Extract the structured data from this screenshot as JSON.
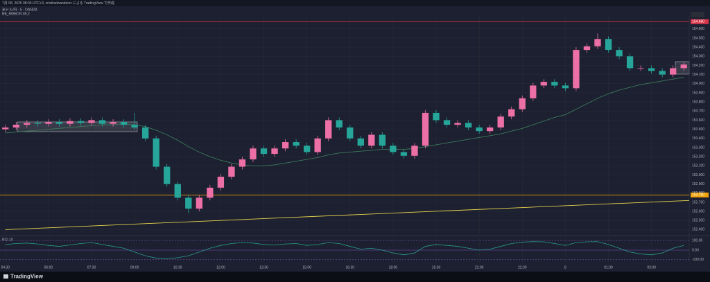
{
  "chart_data": {
    "type": "candlestick",
    "subtitle": "7月 08, 2025 08:03 UTC+9, cristinelwanderer による TradingView で作成",
    "title": "米ドル/円 · 5 · OANDA",
    "source": "TradingView",
    "up_color": "#ec6fa5",
    "down_color": "#26a69a",
    "grid": true,
    "categories": [
      "04:30",
      null,
      null,
      null,
      "06:00",
      null,
      null,
      null,
      "07:30",
      null,
      null,
      null,
      "09:00",
      null,
      null,
      null,
      "10:30",
      null,
      null,
      null,
      "12:00",
      null,
      null,
      null,
      "13:30",
      null,
      null,
      null,
      "15:00",
      null,
      null,
      null,
      "16:30",
      null,
      null,
      null,
      "18:00",
      null,
      null,
      null,
      "19:30",
      null,
      null,
      null,
      "21:00",
      null,
      null,
      null,
      "22:30",
      null,
      null,
      null,
      "8",
      null,
      null,
      null,
      "01:30",
      null,
      null,
      null,
      "03:00",
      null,
      null,
      null
    ],
    "open": [
      153.5,
      153.52,
      153.55,
      153.57,
      153.56,
      153.58,
      153.56,
      153.59,
      153.57,
      153.6,
      153.56,
      153.58,
      153.55,
      153.52,
      153.4,
      153.09,
      152.9,
      152.75,
      152.63,
      152.75,
      152.86,
      152.98,
      153.09,
      153.17,
      153.29,
      153.23,
      153.29,
      153.36,
      153.32,
      153.25,
      153.4,
      153.6,
      153.52,
      153.4,
      153.32,
      153.44,
      153.32,
      153.25,
      153.21,
      153.32,
      153.68,
      153.6,
      153.55,
      153.57,
      153.52,
      153.48,
      153.52,
      153.64,
      153.72,
      153.84,
      153.98,
      154.02,
      153.98,
      153.95,
      154.37,
      154.41,
      154.49,
      154.37,
      154.3,
      154.17,
      154.17,
      154.14,
      154.1,
      154.17
    ],
    "high": [
      153.55,
      153.58,
      153.6,
      153.6,
      153.61,
      153.61,
      153.62,
      153.62,
      153.63,
      153.63,
      153.61,
      153.61,
      153.68,
      153.55,
      153.43,
      153.12,
      152.93,
      152.78,
      152.78,
      152.89,
      153.01,
      153.12,
      153.2,
      153.32,
      153.32,
      153.32,
      153.39,
      153.39,
      153.35,
      153.43,
      153.63,
      153.63,
      153.55,
      153.43,
      153.47,
      153.47,
      153.35,
      153.28,
      153.35,
      153.71,
      153.71,
      153.63,
      153.6,
      153.6,
      153.55,
      153.55,
      153.67,
      153.75,
      153.87,
      154.01,
      154.05,
      154.05,
      154.01,
      154.4,
      154.44,
      154.55,
      154.52,
      154.4,
      154.33,
      154.2,
      154.2,
      154.17,
      154.2,
      154.24
    ],
    "low": [
      153.47,
      153.49,
      153.52,
      153.53,
      153.53,
      153.53,
      153.53,
      153.54,
      153.54,
      153.53,
      153.53,
      153.52,
      153.49,
      153.37,
      153.06,
      152.87,
      152.72,
      152.58,
      152.6,
      152.72,
      152.83,
      152.95,
      153.06,
      153.14,
      153.2,
      153.2,
      153.26,
      153.29,
      153.22,
      153.22,
      153.37,
      153.49,
      153.37,
      153.29,
      153.29,
      153.29,
      153.22,
      153.18,
      153.18,
      153.29,
      153.57,
      153.52,
      153.52,
      153.49,
      153.45,
      153.45,
      153.49,
      153.61,
      153.69,
      153.81,
      153.95,
      153.95,
      153.92,
      153.92,
      154.34,
      154.38,
      154.34,
      154.27,
      154.14,
      154.14,
      154.11,
      154.07,
      154.07,
      154.14
    ],
    "close": [
      153.52,
      153.55,
      153.57,
      153.56,
      153.58,
      153.56,
      153.59,
      153.57,
      153.6,
      153.56,
      153.58,
      153.55,
      153.52,
      153.4,
      153.09,
      152.9,
      152.75,
      152.63,
      152.75,
      152.86,
      152.98,
      153.09,
      153.17,
      153.29,
      153.23,
      153.29,
      153.36,
      153.32,
      153.25,
      153.4,
      153.6,
      153.52,
      153.4,
      153.32,
      153.44,
      153.32,
      153.25,
      153.21,
      153.32,
      153.68,
      153.6,
      153.55,
      153.57,
      153.52,
      153.48,
      153.52,
      153.64,
      153.72,
      153.84,
      153.98,
      154.02,
      153.98,
      153.95,
      154.37,
      154.41,
      154.49,
      154.37,
      154.3,
      154.17,
      154.17,
      154.14,
      154.1,
      154.17,
      154.21
    ],
    "series": [
      {
        "name": "BB_RIBBON 89,2",
        "color": "#3d7a5c",
        "values": [
          153.46,
          153.47,
          153.48,
          153.49,
          153.5,
          153.51,
          153.52,
          153.53,
          153.54,
          153.55,
          153.55,
          153.56,
          153.55,
          153.53,
          153.49,
          153.44,
          153.38,
          153.31,
          153.25,
          153.2,
          153.16,
          153.13,
          153.11,
          153.1,
          153.1,
          153.11,
          153.13,
          153.15,
          153.17,
          153.19,
          153.22,
          153.24,
          153.25,
          153.26,
          153.27,
          153.28,
          153.28,
          153.28,
          153.29,
          153.31,
          153.33,
          153.35,
          153.37,
          153.39,
          153.41,
          153.43,
          153.45,
          153.48,
          153.51,
          153.55,
          153.59,
          153.63,
          153.66,
          153.72,
          153.78,
          153.84,
          153.89,
          153.93,
          153.96,
          153.99,
          154.01,
          154.03,
          154.05,
          154.07
        ]
      }
    ],
    "levels": [
      {
        "value": 154.68,
        "label": "154.680",
        "color": "#d9364a"
      },
      {
        "value": 152.78,
        "label": "152.780",
        "color": "#f0a30a"
      }
    ],
    "trendline": {
      "values": [
        152.4,
        152.72
      ],
      "color": "#e8d44d"
    },
    "ylim": [
      152.35,
      154.72
    ],
    "yticks": [
      {
        "value": 152.4,
        "label": "152.400"
      },
      {
        "value": 152.5,
        "label": "152.500"
      },
      {
        "value": 152.6,
        "label": "152.600"
      },
      {
        "value": 152.7,
        "label": "152.700"
      },
      {
        "value": 152.8,
        "label": "152.800"
      },
      {
        "value": 152.9,
        "label": "152.900"
      },
      {
        "value": 153.0,
        "label": "153.000"
      },
      {
        "value": 153.1,
        "label": "153.100"
      },
      {
        "value": 153.2,
        "label": "153.200"
      },
      {
        "value": 153.3,
        "label": "153.300"
      },
      {
        "value": 153.4,
        "label": "153.400"
      },
      {
        "value": 153.5,
        "label": "153.500"
      },
      {
        "value": 153.6,
        "label": "153.600"
      },
      {
        "value": 153.7,
        "label": "153.700"
      },
      {
        "value": 153.8,
        "label": "153.800"
      },
      {
        "value": 153.9,
        "label": "153.900"
      },
      {
        "value": 154.0,
        "label": "154.000"
      },
      {
        "value": 154.1,
        "label": "154.100"
      },
      {
        "value": 154.2,
        "label": "154.200"
      },
      {
        "value": 154.3,
        "label": "154.300"
      },
      {
        "value": 154.4,
        "label": "154.400"
      },
      {
        "value": 154.5,
        "label": "154.500"
      },
      {
        "value": 154.6,
        "label": "154.600"
      }
    ],
    "rci": {
      "name": "RCI 10",
      "color": "#2a9d8f",
      "values": [
        60,
        70,
        75,
        65,
        50,
        40,
        55,
        70,
        80,
        60,
        40,
        20,
        -20,
        -60,
        -85,
        -90,
        -80,
        -60,
        -20,
        20,
        50,
        70,
        80,
        75,
        60,
        55,
        65,
        70,
        50,
        60,
        80,
        70,
        40,
        10,
        20,
        0,
        -30,
        -50,
        -30,
        40,
        60,
        50,
        40,
        20,
        0,
        10,
        40,
        70,
        85,
        90,
        88,
        70,
        50,
        80,
        88,
        90,
        60,
        20,
        -20,
        -40,
        -50,
        -30,
        20,
        50
      ],
      "ylim": [
        -125,
        125
      ],
      "yticks": [
        {
          "value": 100,
          "label": "100.00"
        },
        {
          "value": 0,
          "label": "0.00"
        },
        {
          "value": -100,
          "label": "-100.00"
        }
      ]
    }
  }
}
